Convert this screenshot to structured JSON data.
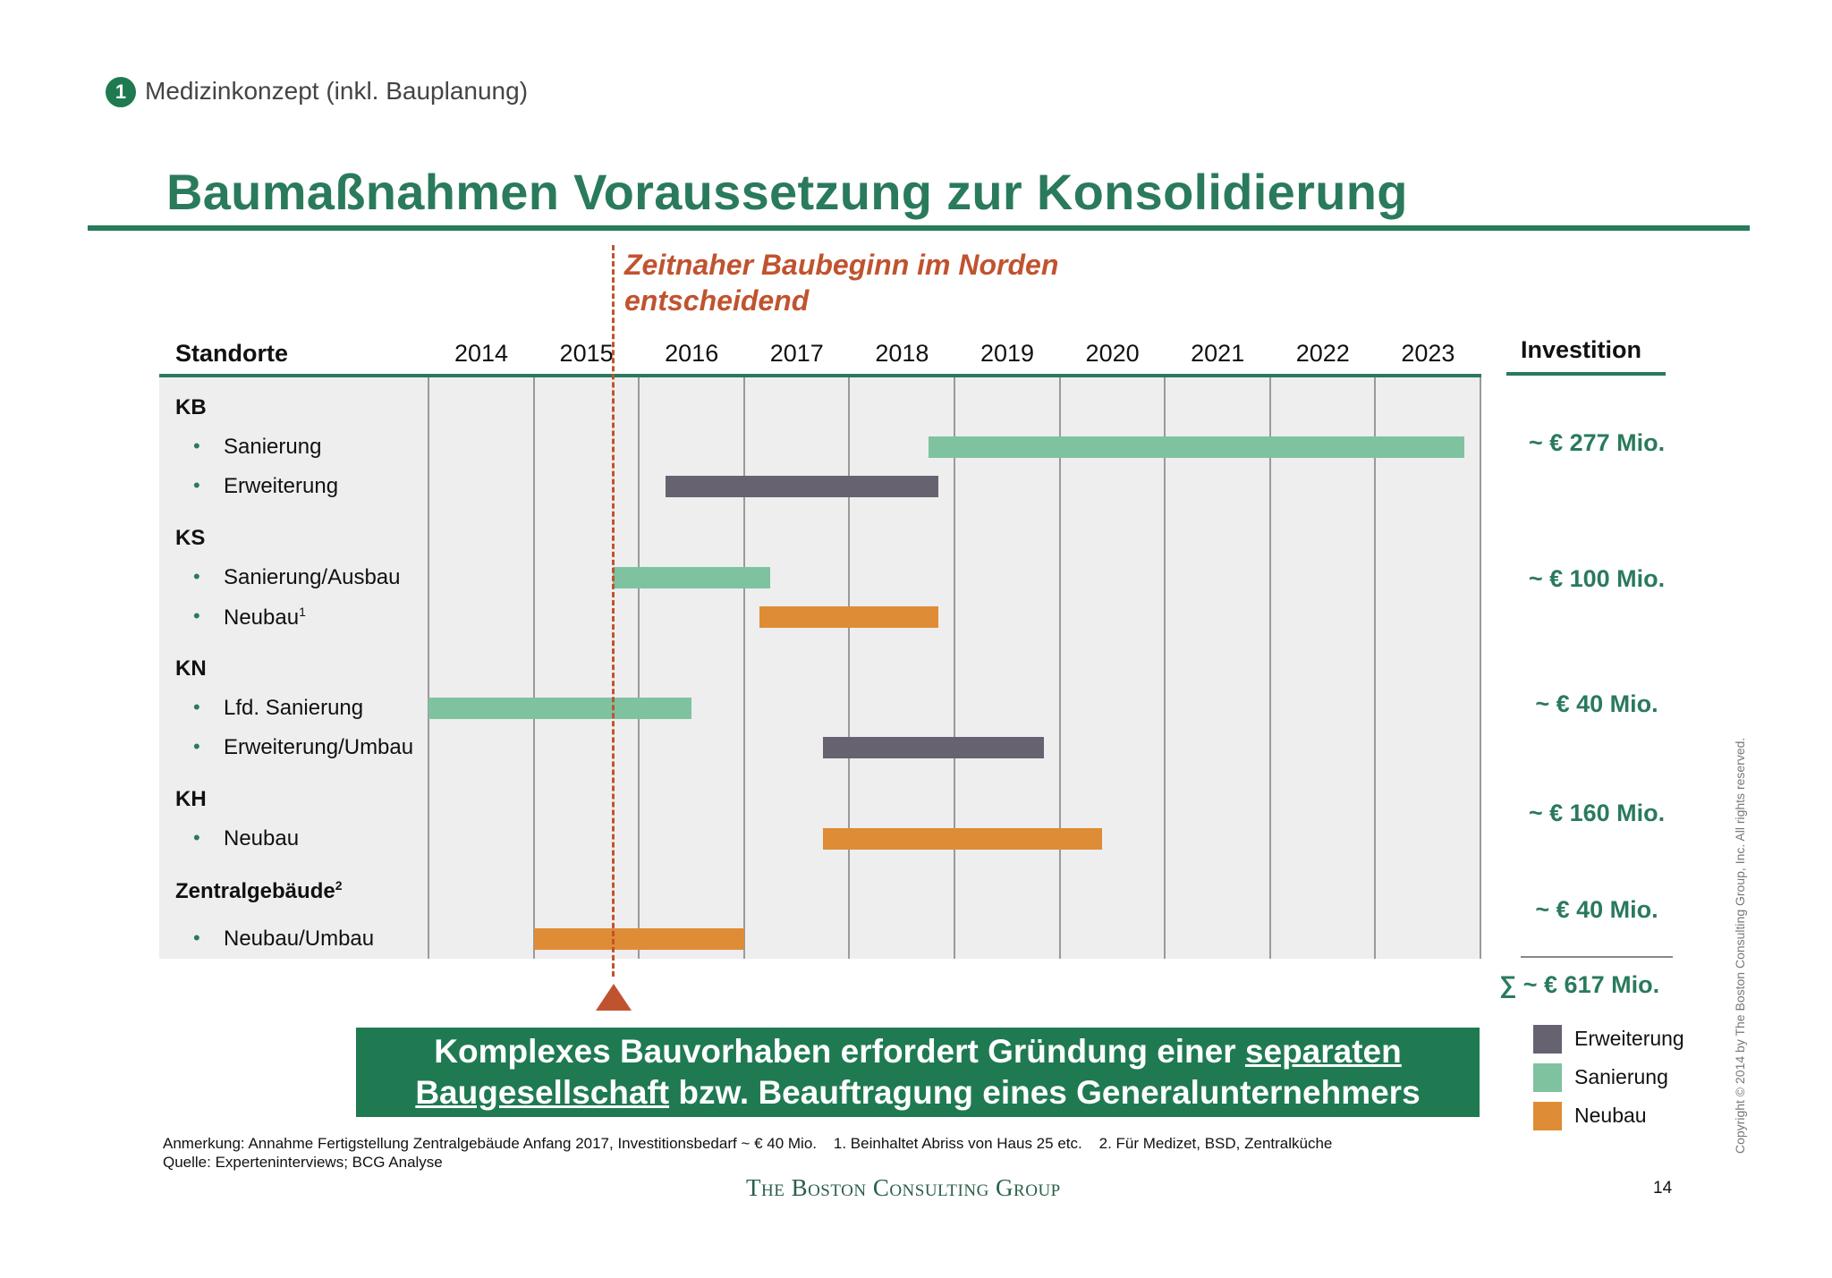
{
  "header": {
    "section_number": "1",
    "section_label": "Medizinkonzept (inkl. Bauplanung)",
    "title": "Baumaßnahmen Voraussetzung zur Konsolidierung"
  },
  "callout": {
    "line1": "Zeitnaher Baubeginn im Norden",
    "line2": "entscheidend"
  },
  "table": {
    "col_standorte": "Standorte",
    "col_investition": "Investition",
    "years": [
      "2014",
      "2015",
      "2016",
      "2017",
      "2018",
      "2019",
      "2020",
      "2021",
      "2022",
      "2023"
    ]
  },
  "groups": [
    {
      "name": "KB",
      "investment": "~ € 277 Mio.",
      "rows": [
        {
          "label": "Sanierung",
          "type": "Sanierung",
          "start": 2018.75,
          "end": 2023.85
        },
        {
          "label": "Erweiterung",
          "type": "Erweiterung",
          "start": 2016.25,
          "end": 2018.85
        }
      ]
    },
    {
      "name": "KS",
      "investment": "~ € 100 Mio.",
      "rows": [
        {
          "label": "Sanierung/Ausbau",
          "type": "Sanierung",
          "start": 2015.75,
          "end": 2017.25
        },
        {
          "label": "Neubau",
          "sup": "1",
          "type": "Neubau",
          "start": 2017.15,
          "end": 2018.85
        }
      ]
    },
    {
      "name": "KN",
      "investment": "~ € 40 Mio.",
      "rows": [
        {
          "label": "Lfd. Sanierung",
          "type": "Sanierung",
          "start": 2014.0,
          "end": 2016.5
        },
        {
          "label": "Erweiterung/Umbau",
          "type": "Erweiterung",
          "start": 2017.75,
          "end": 2019.85
        }
      ]
    },
    {
      "name": "KH",
      "investment": "~ € 160 Mio.",
      "rows": [
        {
          "label": "Neubau",
          "type": "Neubau",
          "start": 2017.75,
          "end": 2020.4
        }
      ]
    },
    {
      "name": "Zentralgebäude",
      "sup": "2",
      "investment": "~ € 40 Mio.",
      "rows": [
        {
          "label": "Neubau/Umbau",
          "type": "Neubau",
          "start": 2015.0,
          "end": 2017.0
        }
      ]
    }
  ],
  "total": {
    "symbol": "∑",
    "value": "~ € 617 Mio."
  },
  "conclusion": {
    "part1": "Komplexes Bauvorhaben erfordert Gründung einer ",
    "part2": "separaten",
    "part3": "Baugesellschaft",
    "part4": " bzw. Beauftragung eines Generalunternehmers"
  },
  "legend": [
    {
      "label": "Erweiterung",
      "color": "#676270"
    },
    {
      "label": "Sanierung",
      "color": "#7fc2a0"
    },
    {
      "label": "Neubau",
      "color": "#df8c36"
    }
  ],
  "footnotes": {
    "note": "Anmerkung: Annahme Fertigstellung Zentralgebäude Anfang 2017, Investitionsbedarf ~ € 40 Mio.    1. Beinhaltet Abriss von Haus 25 etc.    2. Für Medizet, BSD, Zentralküche",
    "source": "Quelle: Experteninterviews; BCG Analyse"
  },
  "brand": "The Boston Consulting Group",
  "page_number": "14",
  "copyright": "Copyright © 2014 by The Boston Consulting Group, Inc. All rights reserved.",
  "colors": {
    "accent": "#2a7a5c",
    "callout": "#c0532f",
    "box": "#1f7a52"
  }
}
